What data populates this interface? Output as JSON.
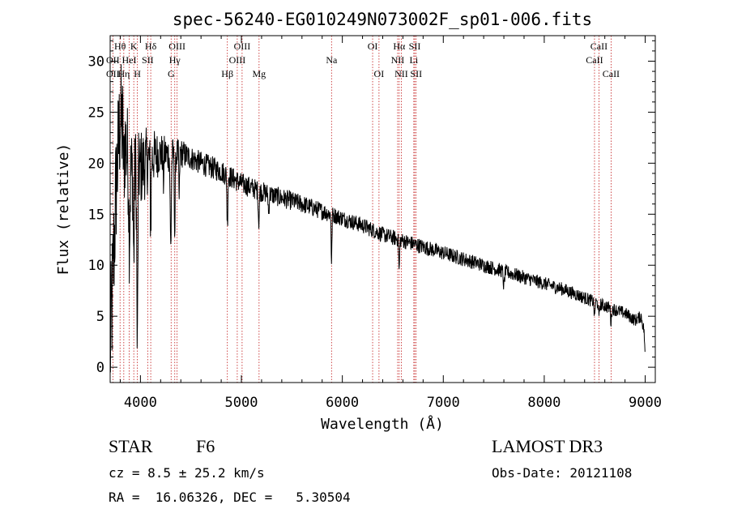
{
  "chart_data": {
    "type": "line",
    "title": "spec-56240-EG010249N073002F_sp01-006.fits",
    "xlabel": "Wavelength (Å)",
    "ylabel": "Flux (relative)",
    "xlim": [
      3700,
      9100
    ],
    "ylim": [
      -1.5,
      32.5
    ],
    "xticks": [
      4000,
      5000,
      6000,
      7000,
      8000,
      9000
    ],
    "xtick_labels": [
      "4000",
      "5000",
      "6000",
      "7000",
      "8000",
      "9000"
    ],
    "yticks": [
      0,
      5,
      10,
      15,
      20,
      25,
      30
    ],
    "ytick_labels": [
      "0",
      "5",
      "10",
      "15",
      "20",
      "25",
      "30"
    ],
    "continuum": [
      [
        3700,
        1.0
      ],
      [
        3760,
        18.0
      ],
      [
        3800,
        24.5
      ],
      [
        3850,
        22.0
      ],
      [
        3900,
        19.0
      ],
      [
        4000,
        19.5
      ],
      [
        4100,
        20.5
      ],
      [
        4200,
        21.0
      ],
      [
        4300,
        20.8
      ],
      [
        4400,
        21.0
      ],
      [
        4500,
        20.5
      ],
      [
        4600,
        20.0
      ],
      [
        4700,
        19.6
      ],
      [
        4800,
        19.2
      ],
      [
        4900,
        18.6
      ],
      [
        5000,
        18.0
      ],
      [
        5200,
        17.2
      ],
      [
        5400,
        16.6
      ],
      [
        5600,
        16.0
      ],
      [
        5800,
        15.3
      ],
      [
        6000,
        14.6
      ],
      [
        6200,
        13.9
      ],
      [
        6400,
        13.0
      ],
      [
        6600,
        12.4
      ],
      [
        6800,
        11.8
      ],
      [
        7000,
        11.2
      ],
      [
        7200,
        10.6
      ],
      [
        7400,
        10.0
      ],
      [
        7600,
        9.4
      ],
      [
        7800,
        8.8
      ],
      [
        8000,
        8.2
      ],
      [
        8200,
        7.6
      ],
      [
        8400,
        6.8
      ],
      [
        8600,
        6.0
      ],
      [
        8800,
        5.3
      ],
      [
        8900,
        4.6
      ],
      [
        8960,
        5.0
      ],
      [
        8990,
        3.5
      ],
      [
        9000,
        0.5
      ]
    ],
    "absorption_features": [
      [
        3835,
        4.0,
        6
      ],
      [
        3890,
        6.5,
        8
      ],
      [
        3934,
        9.0,
        6
      ],
      [
        3969,
        18.0,
        7
      ],
      [
        4102,
        7.0,
        6
      ],
      [
        4227,
        3.0,
        5
      ],
      [
        4300,
        9.0,
        8
      ],
      [
        4340,
        8.0,
        6
      ],
      [
        4384,
        5.0,
        5
      ],
      [
        4861,
        5.0,
        6
      ],
      [
        5172,
        3.0,
        7
      ],
      [
        5270,
        2.0,
        6
      ],
      [
        5893,
        5.0,
        5
      ],
      [
        6563,
        3.0,
        6
      ],
      [
        7600,
        1.5,
        8
      ],
      [
        8498,
        1.5,
        6
      ],
      [
        8542,
        1.5,
        6
      ],
      [
        8662,
        1.5,
        6
      ]
    ],
    "noise_amplitude": [
      [
        3700,
        7.0
      ],
      [
        3950,
        4.5
      ],
      [
        4200,
        2.0
      ],
      [
        4500,
        1.2
      ],
      [
        6000,
        0.8
      ],
      [
        9000,
        0.6
      ]
    ],
    "line_markers": [
      {
        "label": "Hθ",
        "wavelength": 3798,
        "row": 0
      },
      {
        "label": "OII",
        "wavelength": 3727,
        "row": 1
      },
      {
        "label": "OII",
        "wavelength": 3727,
        "row": 2
      },
      {
        "label": "Hη",
        "wavelength": 3835,
        "row": 2
      },
      {
        "label": "HeI",
        "wavelength": 3889,
        "row": 1
      },
      {
        "label": "K",
        "wavelength": 3934,
        "row": 0
      },
      {
        "label": "SII",
        "wavelength": 4072,
        "row": 1
      },
      {
        "label": "H",
        "wavelength": 3969,
        "row": 2
      },
      {
        "label": "Hδ",
        "wavelength": 4102,
        "row": 0
      },
      {
        "label": "OIII",
        "wavelength": 4363,
        "row": 0
      },
      {
        "label": "Hγ",
        "wavelength": 4340,
        "row": 1
      },
      {
        "label": "G",
        "wavelength": 4304,
        "row": 2
      },
      {
        "label": "Hβ",
        "wavelength": 4861,
        "row": 2
      },
      {
        "label": "OIII",
        "wavelength": 5007,
        "row": 0
      },
      {
        "label": "OIII",
        "wavelength": 4959,
        "row": 1
      },
      {
        "label": "Mg",
        "wavelength": 5175,
        "row": 2
      },
      {
        "label": "Na",
        "wavelength": 5893,
        "row": 1
      },
      {
        "label": "OI",
        "wavelength": 6300,
        "row": 0
      },
      {
        "label": "OI",
        "wavelength": 6363,
        "row": 2
      },
      {
        "label": "Hα",
        "wavelength": 6563,
        "row": 0
      },
      {
        "label": "NII",
        "wavelength": 6548,
        "row": 1
      },
      {
        "label": "NII",
        "wavelength": 6584,
        "row": 2
      },
      {
        "label": "SII",
        "wavelength": 6717,
        "row": 0
      },
      {
        "label": "Li",
        "wavelength": 6708,
        "row": 1
      },
      {
        "label": "SII",
        "wavelength": 6731,
        "row": 2
      },
      {
        "label": "CaII",
        "wavelength": 8542,
        "row": 0
      },
      {
        "label": "CaII",
        "wavelength": 8498,
        "row": 1
      },
      {
        "label": "CaII",
        "wavelength": 8662,
        "row": 2
      }
    ]
  },
  "info": {
    "class": "STAR",
    "subclass": "F6",
    "survey": "LAMOST DR3",
    "cz": "cz = 8.5 ± 25.2 km/s",
    "obs_date": "Obs-Date: 20121108",
    "coords": "RA =  16.06326, DEC =   5.30504"
  }
}
